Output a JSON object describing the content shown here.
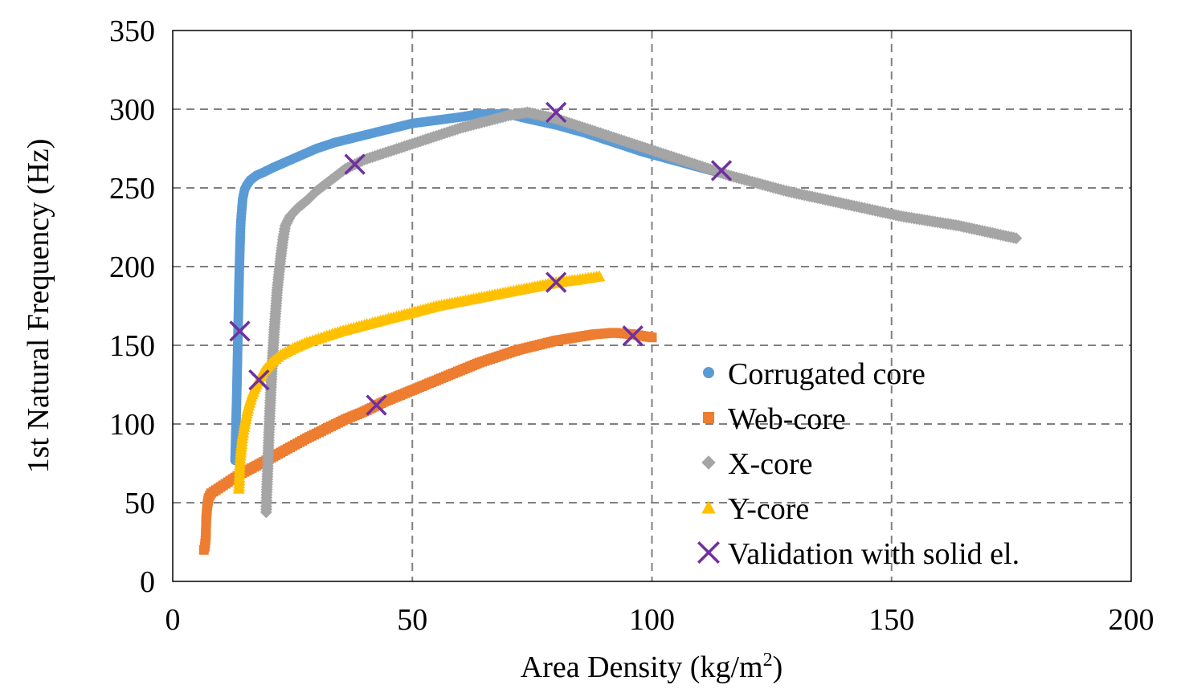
{
  "chart_data": {
    "type": "scatter",
    "title": "",
    "xlabel_main": "Area Density (kg/m",
    "xlabel_sup": "2",
    "xlabel_tail": ")",
    "ylabel": "1st Natural Frequency (Hz)",
    "xlim": [
      0,
      200
    ],
    "ylim": [
      0,
      350
    ],
    "xticks": [
      0,
      50,
      100,
      150,
      200
    ],
    "yticks": [
      0,
      50,
      100,
      150,
      200,
      250,
      300,
      350
    ],
    "xtick_labels": [
      "0",
      "50",
      "100",
      "150",
      "200"
    ],
    "ytick_labels": [
      "0",
      "50",
      "100",
      "150",
      "200",
      "250",
      "300",
      "350"
    ],
    "grid": true,
    "legend_position": "center-right",
    "series": [
      {
        "name": "Corrugated core",
        "marker": "circle",
        "color": "#5B9BD5",
        "x": [
          13.0,
          13.1,
          13.2,
          13.3,
          13.4,
          13.5,
          13.6,
          13.7,
          13.8,
          13.9,
          14.0,
          14.1,
          14.2,
          14.4,
          14.6,
          15.0,
          15.5,
          16.2,
          17.5,
          19.0,
          21.0,
          24.0,
          27.0,
          30.0,
          34.0,
          38.0,
          42.0,
          46.0,
          50.0,
          55.0,
          60.0,
          64.0,
          67.0,
          70.0,
          74.0,
          80.0,
          86.0,
          92.0,
          98.0,
          104.0,
          110.0,
          115.0
        ],
        "y": [
          77,
          88,
          100,
          112,
          125,
          140,
          155,
          170,
          185,
          198,
          210,
          220,
          228,
          236,
          243,
          249,
          252,
          255,
          258,
          260,
          263,
          267,
          271,
          275,
          279,
          282,
          285,
          288,
          291,
          293,
          295,
          297,
          297,
          297,
          294,
          290,
          285,
          279,
          273,
          268,
          263,
          259
        ]
      },
      {
        "name": "Web-core",
        "marker": "square",
        "color": "#ED7D31",
        "x": [
          6.5,
          6.7,
          6.9,
          7.0,
          7.2,
          7.5,
          8.0,
          9.0,
          10.5,
          12.0,
          14.0,
          16.5,
          19.0,
          22.0,
          25.0,
          28.0,
          32.0,
          36.0,
          40.0,
          44.0,
          48.0,
          52.0,
          56.0,
          60.0,
          64.0,
          68.0,
          72.0,
          76.0,
          80.0,
          84.0,
          88.0,
          92.0,
          96.0,
          100.0
        ],
        "y": [
          20,
          22,
          28,
          40,
          48,
          53,
          56,
          58,
          61,
          64,
          68,
          72,
          76,
          81,
          86,
          91,
          97,
          103,
          108,
          114,
          119,
          124,
          129,
          134,
          139,
          143,
          147,
          150,
          153,
          155,
          157,
          158,
          157,
          155
        ]
      },
      {
        "name": "X-core",
        "marker": "diamond",
        "color": "#A5A5A5",
        "x": [
          19.5,
          19.6,
          19.8,
          20.0,
          20.3,
          20.7,
          21.2,
          21.8,
          22.5,
          23.0,
          23.5,
          24.5,
          26.0,
          28.0,
          30.0,
          33.0,
          36.0,
          40.0,
          45.0,
          50.0,
          55.0,
          60.0,
          65.0,
          70.0,
          74.0,
          80.0,
          86.0,
          92.0,
          98.0,
          104.0,
          110.0,
          116.0,
          122.0,
          128.0,
          134.0,
          140.0,
          146.0,
          152.0,
          158.0,
          164.0,
          170.0,
          176.0
        ],
        "y": [
          44,
          55,
          70,
          88,
          110,
          135,
          160,
          185,
          205,
          217,
          226,
          232,
          237,
          242,
          248,
          255,
          262,
          268,
          273,
          278,
          283,
          288,
          292,
          296,
          298,
          294,
          288,
          282,
          276,
          270,
          264,
          258,
          253,
          248,
          244,
          240,
          236,
          232,
          229,
          226,
          222,
          218
        ]
      },
      {
        "name": "Y-core",
        "marker": "triangle",
        "color": "#FFC000",
        "x": [
          13.8,
          13.9,
          14.0,
          14.2,
          14.5,
          15.0,
          15.7,
          16.6,
          17.7,
          19.0,
          20.5,
          22.5,
          25.0,
          28.0,
          31.0,
          35.0,
          40.0,
          45.0,
          50.0,
          55.0,
          60.0,
          65.0,
          70.0,
          75.0,
          80.0,
          85.0,
          89.0
        ],
        "y": [
          59,
          66,
          74,
          82,
          91,
          100,
          110,
          119,
          127,
          134,
          139,
          144,
          148,
          152,
          155,
          159,
          163,
          167,
          171,
          175,
          178,
          181,
          184,
          187,
          190,
          192,
          194
        ]
      },
      {
        "name": "Validation with solid el.",
        "marker": "x",
        "color": "#7030A0",
        "x": [
          14.0,
          18.0,
          38.0,
          42.5,
          80.0,
          80.0,
          96.0,
          114.5
        ],
        "y": [
          159,
          128,
          265,
          112,
          298,
          190,
          156,
          261
        ]
      }
    ]
  }
}
